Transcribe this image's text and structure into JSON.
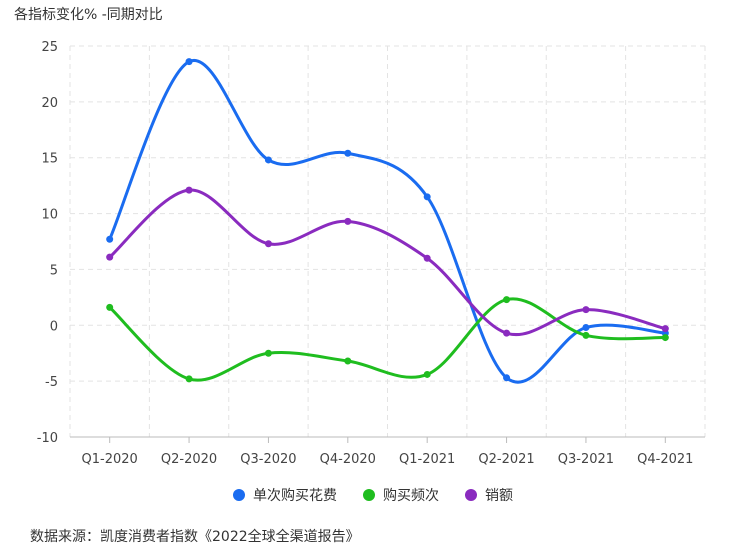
{
  "title": "各指标变化% -同期对比",
  "source": "数据来源：凯度消费者指数《2022全球全渠道报告》",
  "chart_data": {
    "type": "line",
    "title": "各指标变化% -同期对比",
    "categories": [
      "Q1-2020",
      "Q2-2020",
      "Q3-2020",
      "Q4-2020",
      "Q1-2021",
      "Q2-2021",
      "Q3-2021",
      "Q4-2021"
    ],
    "ylim": [
      -10,
      25
    ],
    "yticks": [
      -10,
      -5,
      0,
      5,
      10,
      15,
      20,
      25
    ],
    "grid": true,
    "legend_position": "bottom",
    "series": [
      {
        "name": "单次购买花费",
        "color": "#1a6cf0",
        "values": [
          7.7,
          23.6,
          14.8,
          15.4,
          11.5,
          -4.7,
          -0.2,
          -0.7
        ]
      },
      {
        "name": "购买频次",
        "color": "#1fbd1f",
        "values": [
          1.6,
          -4.8,
          -2.5,
          -3.2,
          -4.4,
          2.3,
          -0.9,
          -1.1
        ]
      },
      {
        "name": "销额",
        "color": "#8a2bbf",
        "values": [
          6.1,
          12.1,
          7.3,
          9.3,
          6.0,
          -0.7,
          1.4,
          -0.3
        ]
      }
    ]
  }
}
